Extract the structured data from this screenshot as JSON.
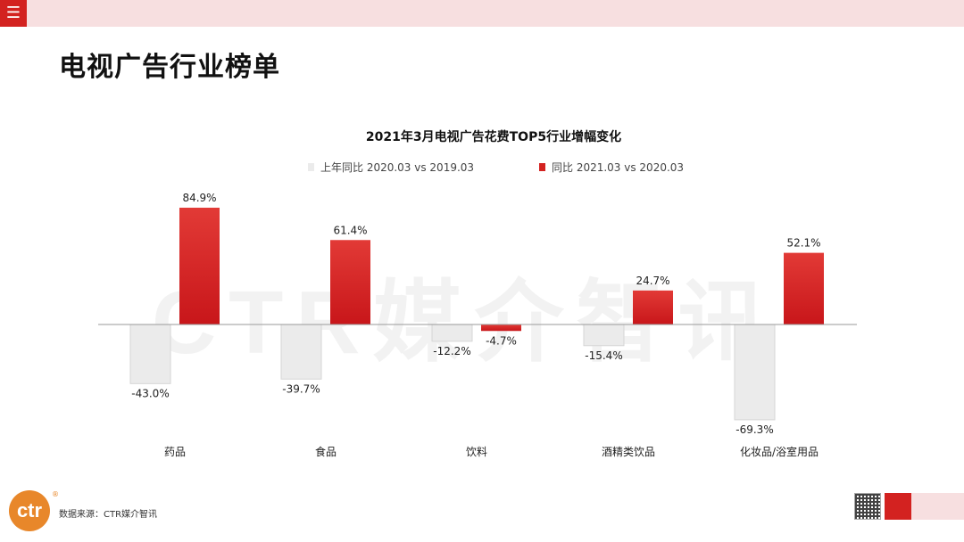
{
  "header": {
    "menu_icon": "hamburger-icon"
  },
  "page_title": "电视广告行业榜单",
  "watermark": "CTR媒介智讯",
  "footer": {
    "logo_text": "ctr",
    "logo_mark": "®",
    "source": "数据来源：CTR媒介智讯"
  },
  "colors": {
    "accent": "#d32220",
    "previous_bar": "#ebebeb",
    "header_bg": "#f7dfe0"
  },
  "chart_data": {
    "type": "bar",
    "title": "2021年3月电视广告花费TOP5行业增幅变化",
    "categories": [
      "药品",
      "食品",
      "饮料",
      "酒精类饮品",
      "化妆品/浴室用品"
    ],
    "series": [
      {
        "name": "上年同比 2020.03 vs 2019.03",
        "values": [
          -43.0,
          -39.7,
          -12.2,
          -15.4,
          -69.3
        ],
        "labels": [
          "-43.0%",
          "-39.7%",
          "-12.2%",
          "-15.4%",
          "-69.3%"
        ]
      },
      {
        "name": "同比 2021.03 vs 2020.03",
        "values": [
          84.9,
          61.4,
          -4.7,
          24.7,
          52.1
        ],
        "labels": [
          "84.9%",
          "61.4%",
          "-4.7%",
          "24.7%",
          "52.1%"
        ]
      }
    ],
    "xlabel": "",
    "ylabel": "",
    "ylim": [
      -70,
      85
    ],
    "grid": false,
    "legend": "top"
  }
}
